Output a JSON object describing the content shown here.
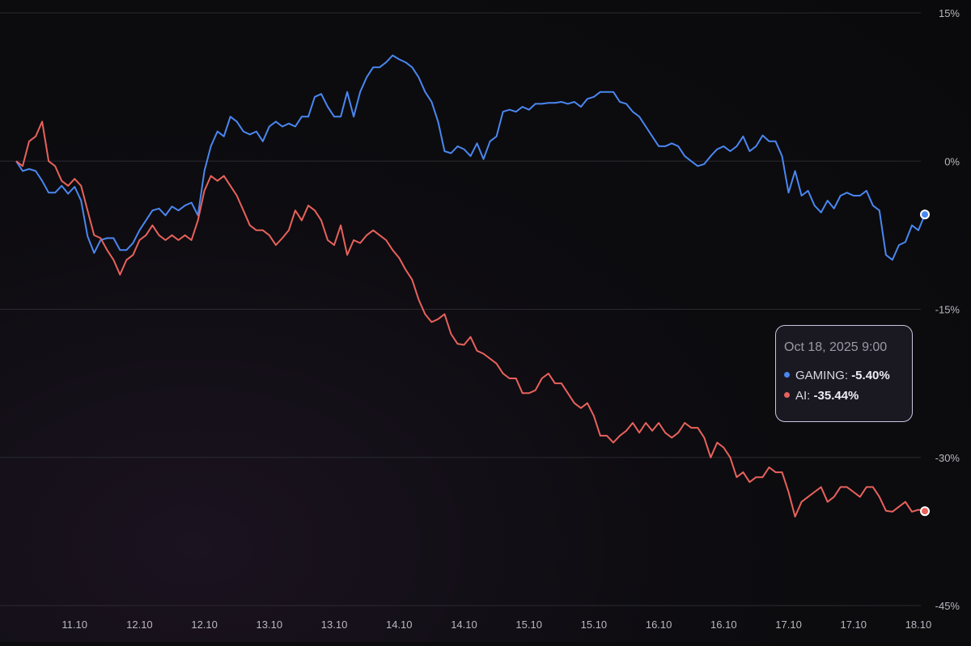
{
  "colors": {
    "gaming": "#4a87f0",
    "ai": "#e8625c",
    "grid": "#2a2a30",
    "axis_text": "#b8b8c0"
  },
  "tooltip": {
    "date": "Oct 18, 2025 9:00",
    "gaming_label": "GAMING:",
    "gaming_value": "-5.40%",
    "ai_label": "AI:",
    "ai_value": "-35.44%"
  },
  "chart_data": {
    "type": "line",
    "ylabel": "",
    "xlabel": "",
    "ylim": [
      -45,
      15
    ],
    "xlim": [
      0,
      140
    ],
    "y_ticks": [
      15,
      0,
      -15,
      -30,
      -45
    ],
    "y_tick_labels": [
      "15%",
      "0%",
      "-15%",
      "-30%",
      "-45%"
    ],
    "x_ticks": [
      9,
      19,
      29,
      39,
      49,
      59,
      69,
      79,
      89,
      99,
      109,
      119,
      129,
      139
    ],
    "x_tick_labels": [
      "11.10",
      "12.10",
      "12.10",
      "13.10",
      "13.10",
      "14.10",
      "14.10",
      "15.10",
      "15.10",
      "16.10",
      "16.10",
      "17.10",
      "17.10",
      "18.10"
    ],
    "grid": true,
    "series": [
      {
        "name": "GAMING",
        "color": "#4a87f0",
        "points": [
          [
            0,
            0
          ],
          [
            1,
            -1
          ],
          [
            2,
            -0.8
          ],
          [
            3,
            -1
          ],
          [
            4,
            -2
          ],
          [
            5,
            -3.2
          ],
          [
            6,
            -3.2
          ],
          [
            7,
            -2.5
          ],
          [
            8,
            -3.3
          ],
          [
            9,
            -2.6
          ],
          [
            10,
            -4
          ],
          [
            11,
            -7.6
          ],
          [
            12,
            -9.3
          ],
          [
            13,
            -8
          ],
          [
            14,
            -7.8
          ],
          [
            15,
            -7.8
          ],
          [
            16,
            -9
          ],
          [
            17,
            -9
          ],
          [
            18,
            -8.3
          ],
          [
            19,
            -7
          ],
          [
            20,
            -6
          ],
          [
            21,
            -5
          ],
          [
            22,
            -4.8
          ],
          [
            23,
            -5.5
          ],
          [
            24,
            -4.6
          ],
          [
            25,
            -5
          ],
          [
            26,
            -4.5
          ],
          [
            27,
            -4.2
          ],
          [
            28,
            -5.5
          ],
          [
            29,
            -1
          ],
          [
            30,
            1.5
          ],
          [
            31,
            3
          ],
          [
            32,
            2.5
          ],
          [
            33,
            4.5
          ],
          [
            34,
            4
          ],
          [
            35,
            3
          ],
          [
            36,
            2.7
          ],
          [
            37,
            3
          ],
          [
            38,
            2
          ],
          [
            39,
            3.5
          ],
          [
            40,
            4
          ],
          [
            41,
            3.5
          ],
          [
            42,
            3.8
          ],
          [
            43,
            3.5
          ],
          [
            44,
            4.5
          ],
          [
            45,
            4.5
          ],
          [
            46,
            6.5
          ],
          [
            47,
            6.8
          ],
          [
            48,
            5.5
          ],
          [
            49,
            4.5
          ],
          [
            50,
            4.5
          ],
          [
            51,
            7
          ],
          [
            52,
            4.5
          ],
          [
            53,
            7
          ],
          [
            54,
            8.5
          ],
          [
            55,
            9.5
          ],
          [
            56,
            9.5
          ],
          [
            57,
            10
          ],
          [
            58,
            10.7
          ],
          [
            59,
            10.3
          ],
          [
            60,
            10
          ],
          [
            61,
            9.5
          ],
          [
            62,
            8.5
          ],
          [
            63,
            7
          ],
          [
            64,
            6
          ],
          [
            65,
            4
          ],
          [
            66,
            1
          ],
          [
            67,
            0.8
          ],
          [
            68,
            1.5
          ],
          [
            69,
            1.2
          ],
          [
            70,
            0.5
          ],
          [
            71,
            1.8
          ],
          [
            72,
            0.2
          ],
          [
            73,
            2
          ],
          [
            74,
            2.5
          ],
          [
            75,
            5
          ],
          [
            76,
            5.2
          ],
          [
            77,
            5
          ],
          [
            78,
            5.5
          ],
          [
            79,
            5.2
          ],
          [
            80,
            5.8
          ],
          [
            81,
            5.8
          ],
          [
            82,
            5.9
          ],
          [
            83,
            5.9
          ],
          [
            84,
            6
          ],
          [
            85,
            5.8
          ],
          [
            86,
            6
          ],
          [
            87,
            5.5
          ],
          [
            88,
            6.3
          ],
          [
            89,
            6.5
          ],
          [
            90,
            7
          ],
          [
            91,
            7
          ],
          [
            92,
            7
          ],
          [
            93,
            6
          ],
          [
            94,
            5.8
          ],
          [
            95,
            5
          ],
          [
            96,
            4.5
          ],
          [
            97,
            3.5
          ],
          [
            98,
            2.5
          ],
          [
            99,
            1.5
          ],
          [
            100,
            1.5
          ],
          [
            101,
            1.8
          ],
          [
            102,
            1.5
          ],
          [
            103,
            0.5
          ],
          [
            104,
            0
          ],
          [
            105,
            -0.5
          ],
          [
            106,
            -0.3
          ],
          [
            107,
            0.5
          ],
          [
            108,
            1.2
          ],
          [
            109,
            1.5
          ],
          [
            110,
            1
          ],
          [
            111,
            1.5
          ],
          [
            112,
            2.5
          ],
          [
            113,
            1
          ],
          [
            114,
            1.5
          ],
          [
            115,
            2.6
          ],
          [
            116,
            2
          ],
          [
            117,
            2
          ],
          [
            118,
            0.5
          ],
          [
            119,
            -3.2
          ],
          [
            120,
            -1
          ],
          [
            121,
            -3.5
          ],
          [
            122,
            -3
          ],
          [
            123,
            -4.5
          ],
          [
            124,
            -5.2
          ],
          [
            125,
            -4
          ],
          [
            126,
            -4.8
          ],
          [
            127,
            -3.5
          ],
          [
            128,
            -3.2
          ],
          [
            129,
            -3.5
          ],
          [
            130,
            -3.5
          ],
          [
            131,
            -3
          ],
          [
            132,
            -4.5
          ],
          [
            133,
            -5
          ],
          [
            134,
            -9.5
          ],
          [
            135,
            -10
          ],
          [
            136,
            -8.5
          ],
          [
            137,
            -8.2
          ],
          [
            138,
            -6.5
          ],
          [
            139,
            -7
          ],
          [
            140,
            -5.4
          ]
        ]
      },
      {
        "name": "AI",
        "color": "#e8625c",
        "points": [
          [
            0,
            0
          ],
          [
            1,
            -0.5
          ],
          [
            2,
            2
          ],
          [
            3,
            2.5
          ],
          [
            4,
            4
          ],
          [
            5,
            0
          ],
          [
            6,
            -0.5
          ],
          [
            7,
            -2
          ],
          [
            8,
            -2.5
          ],
          [
            9,
            -1.8
          ],
          [
            10,
            -2.5
          ],
          [
            11,
            -5
          ],
          [
            12,
            -7.5
          ],
          [
            13,
            -7.8
          ],
          [
            14,
            -9
          ],
          [
            15,
            -10
          ],
          [
            16,
            -11.5
          ],
          [
            17,
            -10
          ],
          [
            18,
            -9.5
          ],
          [
            19,
            -8
          ],
          [
            20,
            -7.5
          ],
          [
            21,
            -6.5
          ],
          [
            22,
            -7.5
          ],
          [
            23,
            -8
          ],
          [
            24,
            -7.5
          ],
          [
            25,
            -8
          ],
          [
            26,
            -7.5
          ],
          [
            27,
            -8
          ],
          [
            28,
            -6
          ],
          [
            29,
            -3
          ],
          [
            30,
            -1.5
          ],
          [
            31,
            -2
          ],
          [
            32,
            -1.5
          ],
          [
            33,
            -2.5
          ],
          [
            34,
            -3.5
          ],
          [
            35,
            -5
          ],
          [
            36,
            -6.5
          ],
          [
            37,
            -7
          ],
          [
            38,
            -7
          ],
          [
            39,
            -7.5
          ],
          [
            40,
            -8.5
          ],
          [
            41,
            -7.8
          ],
          [
            42,
            -7
          ],
          [
            43,
            -5
          ],
          [
            44,
            -6
          ],
          [
            45,
            -4.5
          ],
          [
            46,
            -5
          ],
          [
            47,
            -6
          ],
          [
            48,
            -8
          ],
          [
            49,
            -8.5
          ],
          [
            50,
            -6.5
          ],
          [
            51,
            -9.5
          ],
          [
            52,
            -8
          ],
          [
            53,
            -8.3
          ],
          [
            54,
            -7.5
          ],
          [
            55,
            -7
          ],
          [
            56,
            -7.5
          ],
          [
            57,
            -8
          ],
          [
            58,
            -9
          ],
          [
            59,
            -9.8
          ],
          [
            60,
            -11
          ],
          [
            61,
            -12
          ],
          [
            62,
            -14
          ],
          [
            63,
            -15.5
          ],
          [
            64,
            -16.3
          ],
          [
            65,
            -16
          ],
          [
            66,
            -15.5
          ],
          [
            67,
            -17.5
          ],
          [
            68,
            -18.5
          ],
          [
            69,
            -18.6
          ],
          [
            70,
            -17.8
          ],
          [
            71,
            -19.2
          ],
          [
            72,
            -19.5
          ],
          [
            73,
            -20
          ],
          [
            74,
            -20.5
          ],
          [
            75,
            -21.5
          ],
          [
            76,
            -22
          ],
          [
            77,
            -22
          ],
          [
            78,
            -23.5
          ],
          [
            79,
            -23.5
          ],
          [
            80,
            -23.2
          ],
          [
            81,
            -22
          ],
          [
            82,
            -21.5
          ],
          [
            83,
            -22.5
          ],
          [
            84,
            -22.5
          ],
          [
            85,
            -23.5
          ],
          [
            86,
            -24.5
          ],
          [
            87,
            -25
          ],
          [
            88,
            -24.5
          ],
          [
            89,
            -25.8
          ],
          [
            90,
            -27.8
          ],
          [
            91,
            -27.8
          ],
          [
            92,
            -28.5
          ],
          [
            93,
            -27.8
          ],
          [
            94,
            -27.3
          ],
          [
            95,
            -26.5
          ],
          [
            96,
            -27.5
          ],
          [
            97,
            -26.5
          ],
          [
            98,
            -27.3
          ],
          [
            99,
            -26.5
          ],
          [
            100,
            -27.5
          ],
          [
            101,
            -28
          ],
          [
            102,
            -27.5
          ],
          [
            103,
            -26.5
          ],
          [
            104,
            -27
          ],
          [
            105,
            -27
          ],
          [
            106,
            -28
          ],
          [
            107,
            -30
          ],
          [
            108,
            -28.5
          ],
          [
            109,
            -29
          ],
          [
            110,
            -30
          ],
          [
            111,
            -32
          ],
          [
            112,
            -31.5
          ],
          [
            113,
            -32.5
          ],
          [
            114,
            -32
          ],
          [
            115,
            -32
          ],
          [
            116,
            -31
          ],
          [
            117,
            -31.5
          ],
          [
            118,
            -31.5
          ],
          [
            119,
            -33.5
          ],
          [
            120,
            -36
          ],
          [
            121,
            -34.5
          ],
          [
            122,
            -34
          ],
          [
            123,
            -33.5
          ],
          [
            124,
            -33
          ],
          [
            125,
            -34.5
          ],
          [
            126,
            -34
          ],
          [
            127,
            -33
          ],
          [
            128,
            -33
          ],
          [
            129,
            -33.5
          ],
          [
            130,
            -34
          ],
          [
            131,
            -33
          ],
          [
            132,
            -33
          ],
          [
            133,
            -34
          ],
          [
            134,
            -35.4
          ],
          [
            135,
            -35.5
          ],
          [
            136,
            -35
          ],
          [
            137,
            -34.5
          ],
          [
            138,
            -35.5
          ],
          [
            139,
            -35.3
          ],
          [
            140,
            -35.44
          ]
        ]
      }
    ]
  }
}
